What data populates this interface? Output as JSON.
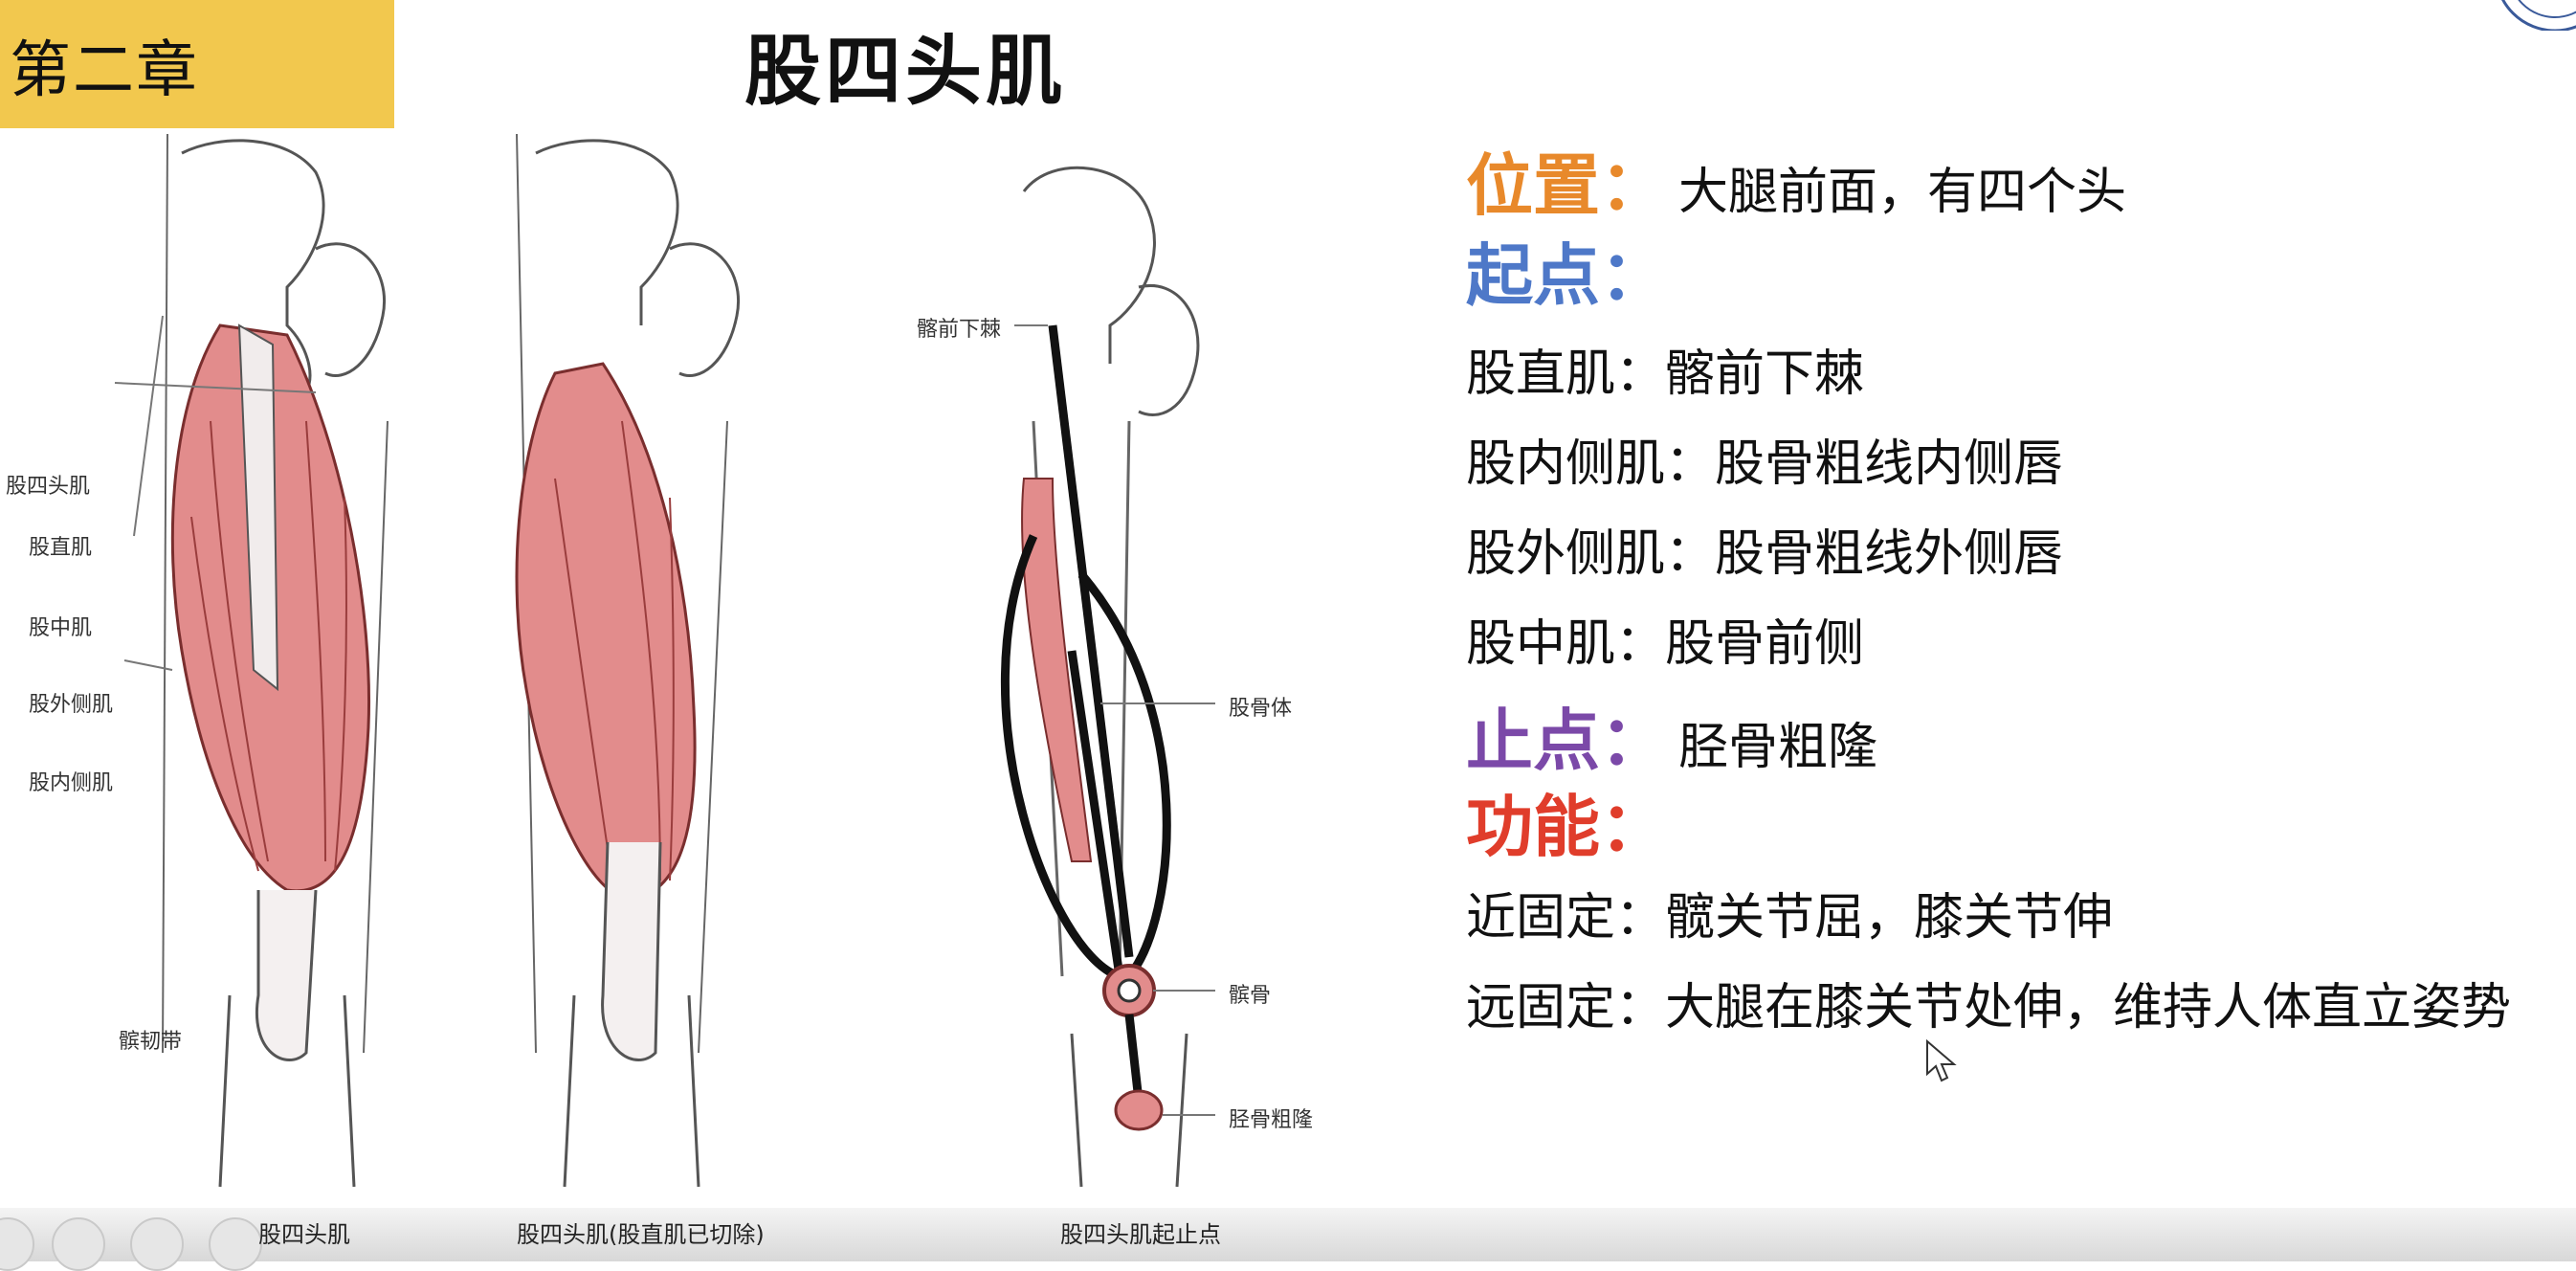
{
  "chapter": {
    "label": "第二章"
  },
  "title": "股四头肌",
  "figures": {
    "fig1": {
      "caption": "股四头肌",
      "labels": [
        "股四头肌",
        "股直肌",
        "股中肌",
        "股外侧肌",
        "股内侧肌",
        "髌韧带"
      ]
    },
    "fig2": {
      "caption": "股四头肌(股直肌已切除)"
    },
    "fig3": {
      "caption": "股四头肌起止点",
      "labels": [
        "髂前下棘",
        "股骨体",
        "髌骨",
        "胫骨粗隆"
      ]
    }
  },
  "info": {
    "position": {
      "head": "位置：",
      "text": "大腿前面，有四个头"
    },
    "origin": {
      "head": "起点："
    },
    "origin_items": [
      "股直肌：髂前下棘",
      "股内侧肌：股骨粗线内侧唇",
      "股外侧肌：股骨粗线外侧唇",
      "股中肌：股骨前侧"
    ],
    "insertion": {
      "head": "止点：",
      "text": "胫骨粗隆"
    },
    "function": {
      "head": "功能："
    },
    "function_items": [
      "近固定：髋关节屈，膝关节伸",
      "远固定：大腿在膝关节处伸，维持人体直立姿势"
    ]
  },
  "colors": {
    "chapter_bg": "#f2c84e",
    "position_head": "#e8892b",
    "origin_head": "#4e78c8",
    "insertion_head": "#7b49a8",
    "function_head": "#e03d2b",
    "muscle": "#e28c8c"
  }
}
